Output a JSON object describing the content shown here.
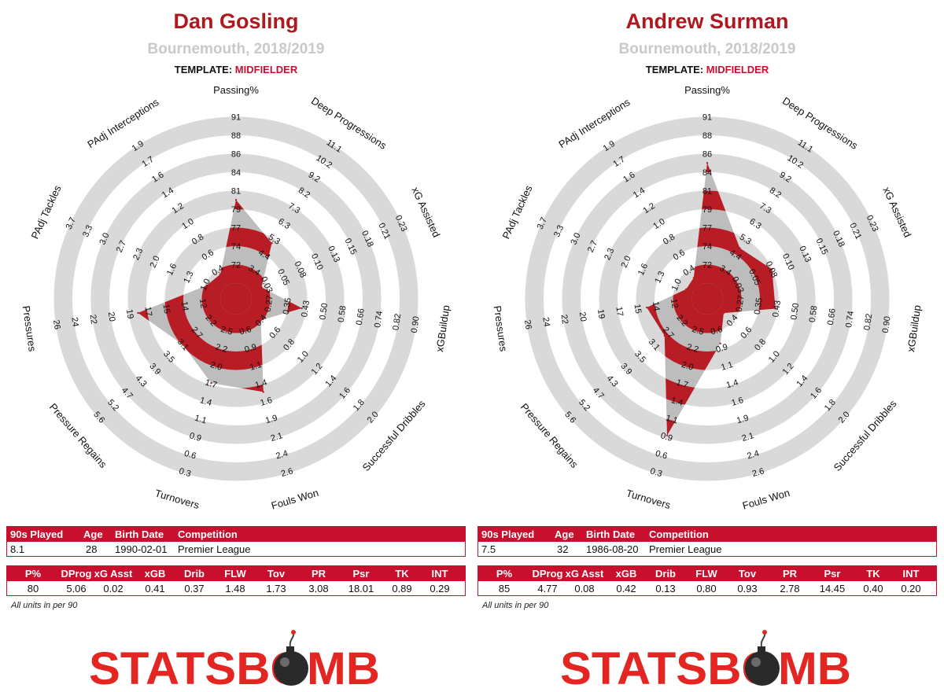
{
  "template_label": "TEMPLATE:",
  "units_note": "All units in per 90",
  "logo_text": "STATSBOMB",
  "colors": {
    "brand_red": "#c8102e",
    "ring_gray": "#d9d9d9",
    "fill_red": "#b81c24",
    "text_gray": "#c9c9c9"
  },
  "table1_headers": [
    "90s Played",
    "Age",
    "Birth Date",
    "Competition"
  ],
  "table2_headers": [
    "P%",
    "DProg",
    "xG Asst",
    "xGB",
    "Drib",
    "FLW",
    "Tov",
    "PR",
    "Psr",
    "TK",
    "INT"
  ],
  "players": [
    {
      "name": "Dan Gosling",
      "subtitle": "Bournemouth, 2018/2019",
      "template": "MIDFIELDER",
      "info": [
        "8.1",
        "28",
        "1990-02-01",
        "Premier League"
      ],
      "stats": [
        "80",
        "5.06",
        "0.02",
        "0.41",
        "0.37",
        "1.48",
        "1.73",
        "3.08",
        "18.01",
        "0.89",
        "0.29"
      ]
    },
    {
      "name": "Andrew Surman",
      "subtitle": "Bournemouth, 2018/2019",
      "template": "MIDFIELDER",
      "info": [
        "7.5",
        "32",
        "1986-08-20",
        "Premier League"
      ],
      "stats": [
        "85",
        "4.77",
        "0.08",
        "0.42",
        "0.13",
        "0.80",
        "0.93",
        "2.78",
        "14.45",
        "0.40",
        "0.20"
      ]
    }
  ],
  "chart_data": [
    {
      "type": "radar",
      "player": "Dan Gosling",
      "axes": [
        {
          "label": "Passing%",
          "ticks": [
            "72",
            "74",
            "77",
            "79",
            "81",
            "84",
            "86",
            "88",
            "91"
          ],
          "value": 80
        },
        {
          "label": "Deep Progressions",
          "ticks": [
            "3.4",
            "4.4",
            "5.3",
            "6.3",
            "7.3",
            "8.2",
            "9.2",
            "10.2",
            "11.1"
          ],
          "value": 5.06
        },
        {
          "label": "xG Assisted",
          "ticks": [
            "0.03",
            "0.05",
            "0.08",
            "0.10",
            "0.13",
            "0.15",
            "0.18",
            "0.21",
            "0.23"
          ],
          "value": 0.02
        },
        {
          "label": "xGBuildup",
          "ticks": [
            "0.27",
            "0.35",
            "0.43",
            "0.50",
            "0.58",
            "0.66",
            "0.74",
            "0.82",
            "0.90"
          ],
          "value": 0.41
        },
        {
          "label": "Successful Dribbles",
          "ticks": [
            "0.4",
            "0.6",
            "0.8",
            "1.0",
            "1.2",
            "1.4",
            "1.6",
            "1.8",
            "2.0"
          ],
          "value": 0.37
        },
        {
          "label": "Fouls Won",
          "ticks": [
            "0.6",
            "0.9",
            "1.1",
            "1.4",
            "1.6",
            "1.9",
            "2.1",
            "2.4",
            "2.6"
          ],
          "value": 1.48
        },
        {
          "label": "Turnovers",
          "ticks": [
            "2.5",
            "2.2",
            "2.0",
            "1.7",
            "1.4",
            "1.1",
            "0.9",
            "0.6",
            "0.3"
          ],
          "value": 1.73
        },
        {
          "label": "Pressure Regains",
          "ticks": [
            "2.2",
            "2.7",
            "3.1",
            "3.5",
            "3.9",
            "4.3",
            "4.7",
            "5.2",
            "5.6"
          ],
          "value": 3.08
        },
        {
          "label": "Pressures",
          "ticks": [
            "12",
            "14",
            "15",
            "17",
            "19",
            "20",
            "22",
            "24",
            "26"
          ],
          "value": 18.01
        },
        {
          "label": "PAdj Tackles",
          "ticks": [
            "1.0",
            "1.3",
            "1.6",
            "2.0",
            "2.3",
            "2.7",
            "3.0",
            "3.3",
            "3.7"
          ],
          "value": 0.89
        },
        {
          "label": "PAdj Interceptions",
          "ticks": [
            "0.4",
            "0.6",
            "0.8",
            "1.0",
            "1.2",
            "1.4",
            "1.6",
            "1.7",
            "1.9"
          ],
          "value": 0.29
        }
      ]
    },
    {
      "type": "radar",
      "player": "Andrew Surman",
      "axes": [
        {
          "label": "Passing%",
          "ticks": [
            "72",
            "74",
            "77",
            "79",
            "81",
            "84",
            "86",
            "88",
            "91"
          ],
          "value": 85
        },
        {
          "label": "Deep Progressions",
          "ticks": [
            "3.4",
            "4.4",
            "5.3",
            "6.3",
            "7.3",
            "8.2",
            "9.2",
            "10.2",
            "11.1"
          ],
          "value": 4.77
        },
        {
          "label": "xG Assisted",
          "ticks": [
            "0.03",
            "0.05",
            "0.08",
            "0.10",
            "0.13",
            "0.15",
            "0.18",
            "0.21",
            "0.23"
          ],
          "value": 0.08
        },
        {
          "label": "xGBuildup",
          "ticks": [
            "0.27",
            "0.35",
            "0.43",
            "0.50",
            "0.58",
            "0.66",
            "0.74",
            "0.82",
            "0.90"
          ],
          "value": 0.42
        },
        {
          "label": "Successful Dribbles",
          "ticks": [
            "0.4",
            "0.6",
            "0.8",
            "1.0",
            "1.2",
            "1.4",
            "1.6",
            "1.8",
            "2.0"
          ],
          "value": 0.13
        },
        {
          "label": "Fouls Won",
          "ticks": [
            "0.6",
            "0.9",
            "1.1",
            "1.4",
            "1.6",
            "1.9",
            "2.1",
            "2.4",
            "2.6"
          ],
          "value": 0.8
        },
        {
          "label": "Turnovers",
          "ticks": [
            "2.5",
            "2.2",
            "2.0",
            "1.7",
            "1.4",
            "1.1",
            "0.9",
            "0.6",
            "0.3"
          ],
          "value": 0.93
        },
        {
          "label": "Pressure Regains",
          "ticks": [
            "2.2",
            "2.7",
            "3.1",
            "3.5",
            "3.9",
            "4.3",
            "4.7",
            "5.2",
            "5.6"
          ],
          "value": 2.78
        },
        {
          "label": "Pressures",
          "ticks": [
            "12",
            "14",
            "15",
            "17",
            "19",
            "20",
            "22",
            "24",
            "26"
          ],
          "value": 14.45
        },
        {
          "label": "PAdj Tackles",
          "ticks": [
            "1.0",
            "1.3",
            "1.6",
            "2.0",
            "2.3",
            "2.7",
            "3.0",
            "3.3",
            "3.7"
          ],
          "value": 0.4
        },
        {
          "label": "PAdj Interceptions",
          "ticks": [
            "0.4",
            "0.6",
            "0.8",
            "1.0",
            "1.2",
            "1.4",
            "1.6",
            "1.7",
            "1.9"
          ],
          "value": 0.2
        }
      ]
    }
  ]
}
